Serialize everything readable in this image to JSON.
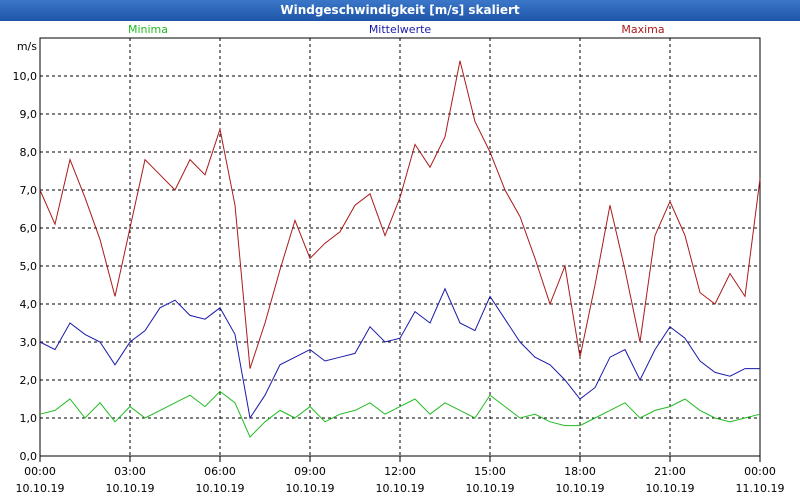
{
  "window": {
    "title": "Windgeschwindigkeit [m/s] skaliert"
  },
  "chart_data": {
    "type": "line",
    "title": "Windgeschwindigkeit [m/s] skaliert",
    "ylabel": "m/s",
    "ylim": [
      0,
      11
    ],
    "yticks": [
      "0,0",
      "1,0",
      "2,0",
      "3,0",
      "4,0",
      "5,0",
      "6,0",
      "7,0",
      "8,0",
      "9,0",
      "10,0"
    ],
    "xlim_hours": [
      0,
      24
    ],
    "xticks": [
      {
        "time": "00:00",
        "date": "10.10.19"
      },
      {
        "time": "03:00",
        "date": "10.10.19"
      },
      {
        "time": "06:00",
        "date": "10.10.19"
      },
      {
        "time": "09:00",
        "date": "10.10.19"
      },
      {
        "time": "12:00",
        "date": "10.10.19"
      },
      {
        "time": "15:00",
        "date": "10.10.19"
      },
      {
        "time": "18:00",
        "date": "10.10.19"
      },
      {
        "time": "21:00",
        "date": "10.10.19"
      },
      {
        "time": "00:00",
        "date": "11.10.19"
      }
    ],
    "grid": true,
    "series": [
      {
        "name": "Minima",
        "color": "#22bb22",
        "x": [
          0,
          0.5,
          1,
          1.5,
          2,
          2.5,
          3,
          3.5,
          4,
          4.5,
          5,
          5.5,
          6,
          6.5,
          7,
          7.5,
          8,
          8.5,
          9,
          9.5,
          10,
          10.5,
          11,
          11.5,
          12,
          12.5,
          13,
          13.5,
          14,
          14.5,
          15,
          15.5,
          16,
          16.5,
          17,
          17.5,
          18,
          18.5,
          19,
          19.5,
          20,
          20.5,
          21,
          21.5,
          22,
          22.5,
          23,
          23.5,
          24
        ],
        "values": [
          1.1,
          1.2,
          1.5,
          1.0,
          1.4,
          0.9,
          1.3,
          1.0,
          1.2,
          1.4,
          1.6,
          1.3,
          1.7,
          1.4,
          0.5,
          0.9,
          1.2,
          1.0,
          1.3,
          0.9,
          1.1,
          1.2,
          1.4,
          1.1,
          1.3,
          1.5,
          1.1,
          1.4,
          1.2,
          1.0,
          1.6,
          1.3,
          1.0,
          1.1,
          0.9,
          0.8,
          0.8,
          1.0,
          1.2,
          1.4,
          1.0,
          1.2,
          1.3,
          1.5,
          1.2,
          1.0,
          0.9,
          1.0,
          1.1
        ]
      },
      {
        "name": "Mittelwerte",
        "color": "#1a1aaa",
        "x": [
          0,
          0.5,
          1,
          1.5,
          2,
          2.5,
          3,
          3.5,
          4,
          4.5,
          5,
          5.5,
          6,
          6.5,
          7,
          7.5,
          8,
          8.5,
          9,
          9.5,
          10,
          10.5,
          11,
          11.5,
          12,
          12.5,
          13,
          13.5,
          14,
          14.5,
          15,
          15.5,
          16,
          16.5,
          17,
          17.5,
          18,
          18.5,
          19,
          19.5,
          20,
          20.5,
          21,
          21.5,
          22,
          22.5,
          23,
          23.5,
          24
        ],
        "values": [
          3.0,
          2.8,
          3.5,
          3.2,
          3.0,
          2.4,
          3.0,
          3.3,
          3.9,
          4.1,
          3.7,
          3.6,
          3.9,
          3.2,
          1.0,
          1.6,
          2.4,
          2.6,
          2.8,
          2.5,
          2.6,
          2.7,
          3.4,
          3.0,
          3.1,
          3.8,
          3.5,
          4.4,
          3.5,
          3.3,
          4.2,
          3.6,
          3.0,
          2.6,
          2.4,
          2.0,
          1.5,
          1.8,
          2.6,
          2.8,
          2.0,
          2.8,
          3.4,
          3.1,
          2.5,
          2.2,
          2.1,
          2.3,
          2.3
        ]
      },
      {
        "name": "Maxima",
        "color": "#aa1a1a",
        "x": [
          0,
          0.5,
          1,
          1.5,
          2,
          2.5,
          3,
          3.5,
          4,
          4.5,
          5,
          5.5,
          6,
          6.5,
          7,
          7.5,
          8,
          8.5,
          9,
          9.5,
          10,
          10.5,
          11,
          11.5,
          12,
          12.5,
          13,
          13.5,
          14,
          14.5,
          15,
          15.5,
          16,
          16.5,
          17,
          17.5,
          18,
          18.5,
          19,
          19.5,
          20,
          20.5,
          21,
          21.5,
          22,
          22.5,
          23,
          23.5,
          24
        ],
        "values": [
          7.0,
          6.1,
          7.8,
          6.8,
          5.7,
          4.2,
          6.0,
          7.8,
          7.4,
          7.0,
          7.8,
          7.4,
          8.6,
          6.6,
          2.3,
          3.5,
          4.9,
          6.2,
          5.2,
          5.6,
          5.9,
          6.6,
          6.9,
          5.8,
          6.8,
          8.2,
          7.6,
          8.4,
          10.4,
          8.8,
          8.0,
          7.0,
          6.3,
          5.2,
          4.0,
          5.0,
          2.6,
          4.5,
          6.6,
          4.9,
          3.0,
          5.8,
          6.7,
          5.8,
          4.3,
          4.0,
          4.8,
          4.2,
          7.3
        ]
      }
    ]
  }
}
